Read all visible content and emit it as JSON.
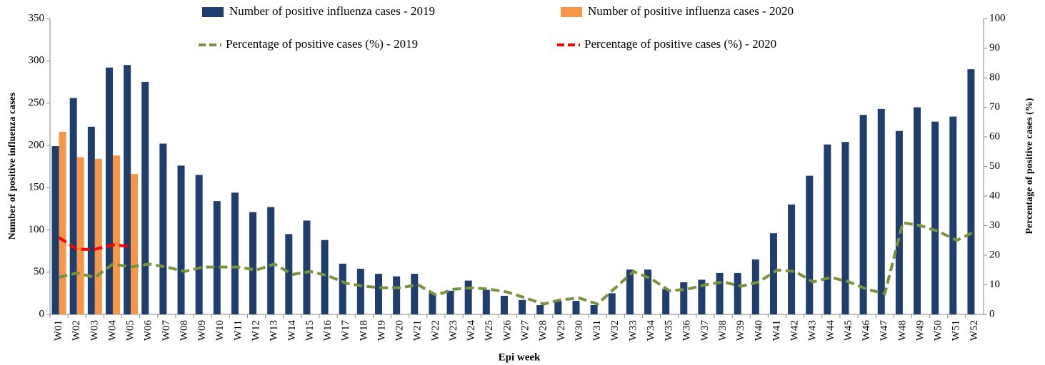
{
  "chart_data": {
    "type": "bar-line",
    "x_label": "Epi week",
    "y_label": "Number of positive influenza cases",
    "y2_label": "Percentage of positive cases (%)",
    "categories": [
      "W01",
      "W02",
      "W03",
      "W04",
      "W05",
      "W06",
      "W07",
      "W08",
      "W09",
      "W10",
      "W11",
      "W12",
      "W13",
      "W14",
      "W15",
      "W16",
      "W17",
      "W18",
      "W19",
      "W20",
      "W21",
      "W22",
      "W23",
      "W24",
      "W25",
      "W26",
      "W27",
      "W28",
      "W29",
      "W30",
      "W31",
      "W32",
      "W33",
      "W34",
      "W35",
      "W36",
      "W37",
      "W38",
      "W39",
      "W40",
      "W41",
      "W42",
      "W43",
      "W44",
      "W45",
      "W46",
      "W47",
      "W48",
      "W49",
      "W50",
      "W51",
      "W52"
    ],
    "series": [
      {
        "name": "Number of positive influenza cases  - 2019",
        "type": "bar",
        "color": "#1f3d6d",
        "values": [
          199,
          256,
          222,
          292,
          295,
          275,
          202,
          176,
          165,
          134,
          144,
          121,
          127,
          95,
          111,
          88,
          60,
          54,
          48,
          45,
          48,
          25,
          28,
          40,
          29,
          22,
          17,
          11,
          16,
          16,
          11,
          25,
          53,
          53,
          30,
          38,
          41,
          49,
          49,
          65,
          96,
          130,
          164,
          201,
          204,
          236,
          243,
          217,
          245,
          228,
          234,
          290
        ]
      },
      {
        "name": "Number of positive influenza cases  - 2020",
        "type": "bar",
        "color": "#f79646",
        "values": [
          216,
          186,
          184,
          188,
          166,
          null,
          null,
          null,
          null,
          null,
          null,
          null,
          null,
          null,
          null,
          null,
          null,
          null,
          null,
          null,
          null,
          null,
          null,
          null,
          null,
          null,
          null,
          null,
          null,
          null,
          null,
          null,
          null,
          null,
          null,
          null,
          null,
          null,
          null,
          null,
          null,
          null,
          null,
          null,
          null,
          null,
          null,
          null,
          null,
          null,
          null,
          null
        ]
      },
      {
        "name": "Percentage of positive cases (%)  - 2019",
        "type": "line",
        "axis": "y2",
        "color": "#77933c",
        "values": [
          12.5,
          14,
          12.5,
          17,
          16,
          17,
          16,
          14.5,
          16,
          16,
          16,
          15,
          17,
          13.5,
          14.5,
          13,
          10.5,
          9.5,
          9,
          9,
          10,
          6.5,
          8.5,
          9,
          8.5,
          7.5,
          5.5,
          3.5,
          5,
          5.5,
          3.5,
          9,
          14.5,
          12,
          8,
          8.5,
          10,
          11,
          9.5,
          11,
          15,
          14.5,
          11,
          12.5,
          11,
          8.5,
          7,
          31,
          30,
          28,
          25,
          28
        ]
      },
      {
        "name": "Percentage of positive cases (%)  - 2020",
        "type": "line",
        "axis": "y2",
        "color": "#ff0000",
        "values": [
          26,
          22,
          22,
          23.5,
          23,
          null,
          null,
          null,
          null,
          null,
          null,
          null,
          null,
          null,
          null,
          null,
          null,
          null,
          null,
          null,
          null,
          null,
          null,
          null,
          null,
          null,
          null,
          null,
          null,
          null,
          null,
          null,
          null,
          null,
          null,
          null,
          null,
          null,
          null,
          null,
          null,
          null,
          null,
          null,
          null,
          null,
          null,
          null,
          null,
          null,
          null,
          null
        ]
      }
    ],
    "ylim": [
      0,
      350
    ],
    "yticks": [
      0,
      50,
      100,
      150,
      200,
      250,
      300,
      350
    ],
    "y2lim": [
      0,
      100
    ],
    "y2ticks": [
      0,
      10,
      20,
      30,
      40,
      50,
      60,
      70,
      80,
      90,
      100
    ],
    "legend": "top"
  }
}
